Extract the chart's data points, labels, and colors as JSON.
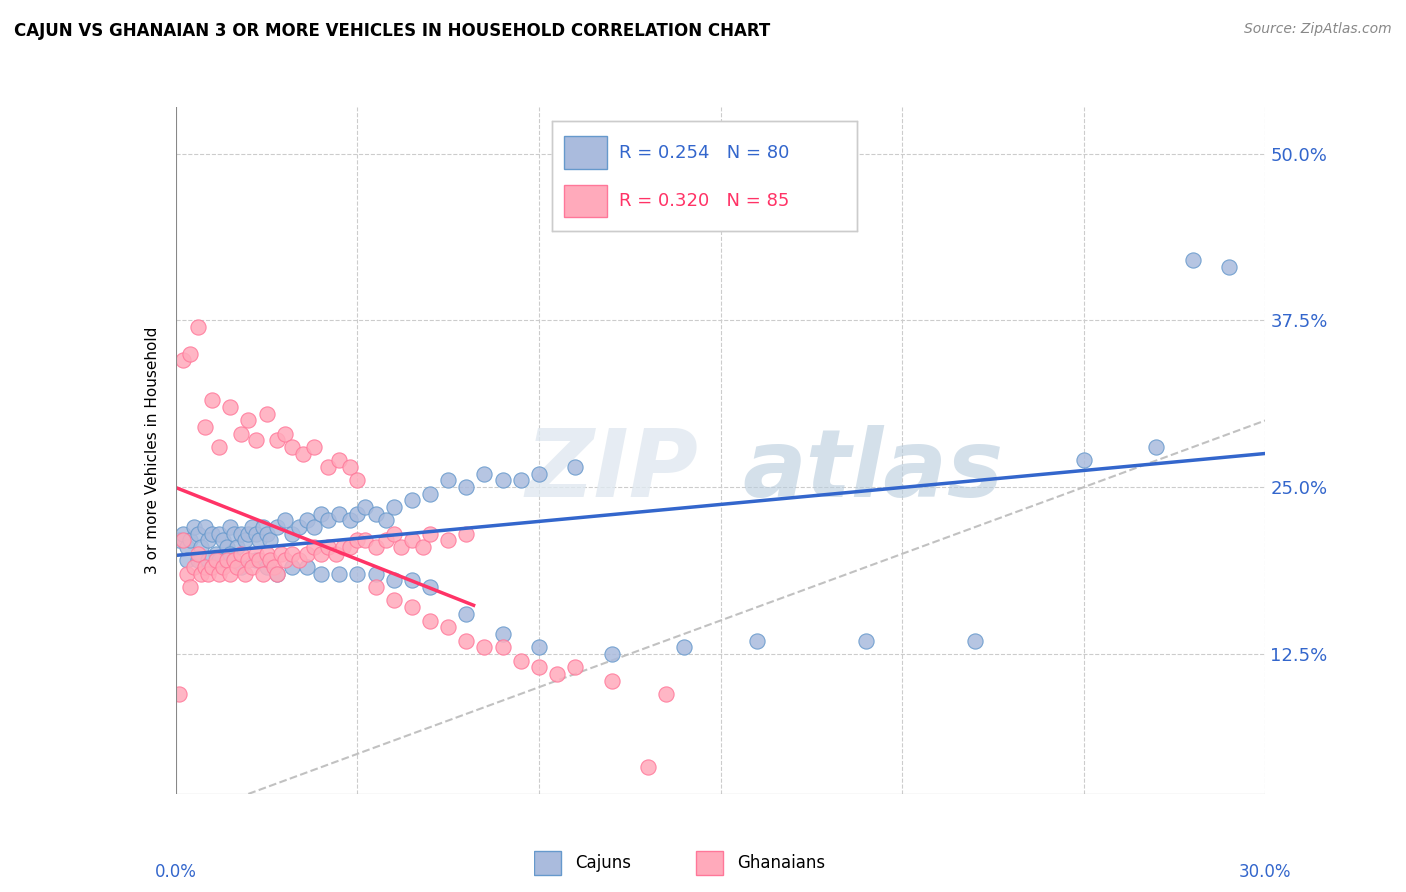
{
  "title": "CAJUN VS GHANAIAN 3 OR MORE VEHICLES IN HOUSEHOLD CORRELATION CHART",
  "source": "Source: ZipAtlas.com",
  "ylabel": "3 or more Vehicles in Household",
  "ytick_labels": [
    "12.5%",
    "25.0%",
    "37.5%",
    "50.0%"
  ],
  "ytick_vals": [
    0.125,
    0.25,
    0.375,
    0.5
  ],
  "xmin": 0.0,
  "xmax": 0.3,
  "ymin": 0.02,
  "ymax": 0.535,
  "cajun_dot_color": "#aabbdd",
  "cajun_dot_edge": "#6699cc",
  "ghanaian_dot_color": "#ffaabb",
  "ghanaian_dot_edge": "#ff7799",
  "trend_cajun_color": "#3366cc",
  "trend_ghanaian_color": "#ff3366",
  "diagonal_color": "#bbbbbb",
  "tick_color": "#3366cc",
  "legend_box_cajun": "#aabbdd",
  "legend_box_ghanaian": "#ffaabb",
  "legend_text_color": "#3366cc",
  "legend_N_color": "#ff3366",
  "watermark_zip_color": "#ddddee",
  "watermark_atlas_color": "#aabbdd",
  "cajun_x": [
    0.001,
    0.002,
    0.003,
    0.004,
    0.005,
    0.006,
    0.007,
    0.008,
    0.009,
    0.01,
    0.011,
    0.012,
    0.013,
    0.014,
    0.015,
    0.016,
    0.017,
    0.018,
    0.019,
    0.02,
    0.021,
    0.022,
    0.023,
    0.024,
    0.025,
    0.026,
    0.028,
    0.03,
    0.032,
    0.034,
    0.036,
    0.038,
    0.04,
    0.042,
    0.045,
    0.048,
    0.05,
    0.052,
    0.055,
    0.058,
    0.06,
    0.065,
    0.07,
    0.075,
    0.08,
    0.085,
    0.09,
    0.095,
    0.1,
    0.11,
    0.003,
    0.006,
    0.009,
    0.012,
    0.015,
    0.018,
    0.022,
    0.025,
    0.028,
    0.032,
    0.036,
    0.04,
    0.045,
    0.05,
    0.055,
    0.06,
    0.065,
    0.07,
    0.08,
    0.09,
    0.1,
    0.12,
    0.14,
    0.16,
    0.19,
    0.22,
    0.25,
    0.27,
    0.28,
    0.29
  ],
  "cajun_y": [
    0.21,
    0.215,
    0.205,
    0.21,
    0.22,
    0.215,
    0.205,
    0.22,
    0.21,
    0.215,
    0.2,
    0.215,
    0.21,
    0.205,
    0.22,
    0.215,
    0.205,
    0.215,
    0.21,
    0.215,
    0.22,
    0.215,
    0.21,
    0.22,
    0.215,
    0.21,
    0.22,
    0.225,
    0.215,
    0.22,
    0.225,
    0.22,
    0.23,
    0.225,
    0.23,
    0.225,
    0.23,
    0.235,
    0.23,
    0.225,
    0.235,
    0.24,
    0.245,
    0.255,
    0.25,
    0.26,
    0.255,
    0.255,
    0.26,
    0.265,
    0.195,
    0.195,
    0.195,
    0.195,
    0.2,
    0.19,
    0.195,
    0.19,
    0.185,
    0.19,
    0.19,
    0.185,
    0.185,
    0.185,
    0.185,
    0.18,
    0.18,
    0.175,
    0.155,
    0.14,
    0.13,
    0.125,
    0.13,
    0.135,
    0.135,
    0.135,
    0.27,
    0.28,
    0.42,
    0.415
  ],
  "ghanaian_x": [
    0.001,
    0.002,
    0.003,
    0.004,
    0.005,
    0.006,
    0.007,
    0.008,
    0.009,
    0.01,
    0.011,
    0.012,
    0.013,
    0.014,
    0.015,
    0.016,
    0.017,
    0.018,
    0.019,
    0.02,
    0.021,
    0.022,
    0.023,
    0.024,
    0.025,
    0.026,
    0.027,
    0.028,
    0.029,
    0.03,
    0.032,
    0.034,
    0.036,
    0.038,
    0.04,
    0.042,
    0.044,
    0.046,
    0.048,
    0.05,
    0.052,
    0.055,
    0.058,
    0.06,
    0.062,
    0.065,
    0.068,
    0.07,
    0.075,
    0.08,
    0.002,
    0.004,
    0.006,
    0.008,
    0.01,
    0.012,
    0.015,
    0.018,
    0.02,
    0.022,
    0.025,
    0.028,
    0.03,
    0.032,
    0.035,
    0.038,
    0.042,
    0.045,
    0.048,
    0.05,
    0.055,
    0.06,
    0.065,
    0.07,
    0.075,
    0.08,
    0.085,
    0.09,
    0.095,
    0.1,
    0.105,
    0.11,
    0.12,
    0.13,
    0.135
  ],
  "ghanaian_y": [
    0.095,
    0.21,
    0.185,
    0.175,
    0.19,
    0.2,
    0.185,
    0.19,
    0.185,
    0.19,
    0.195,
    0.185,
    0.19,
    0.195,
    0.185,
    0.195,
    0.19,
    0.2,
    0.185,
    0.195,
    0.19,
    0.2,
    0.195,
    0.185,
    0.2,
    0.195,
    0.19,
    0.185,
    0.2,
    0.195,
    0.2,
    0.195,
    0.2,
    0.205,
    0.2,
    0.205,
    0.2,
    0.205,
    0.205,
    0.21,
    0.21,
    0.205,
    0.21,
    0.215,
    0.205,
    0.21,
    0.205,
    0.215,
    0.21,
    0.215,
    0.345,
    0.35,
    0.37,
    0.295,
    0.315,
    0.28,
    0.31,
    0.29,
    0.3,
    0.285,
    0.305,
    0.285,
    0.29,
    0.28,
    0.275,
    0.28,
    0.265,
    0.27,
    0.265,
    0.255,
    0.175,
    0.165,
    0.16,
    0.15,
    0.145,
    0.135,
    0.13,
    0.13,
    0.12,
    0.115,
    0.11,
    0.115,
    0.105,
    0.04,
    0.095
  ]
}
